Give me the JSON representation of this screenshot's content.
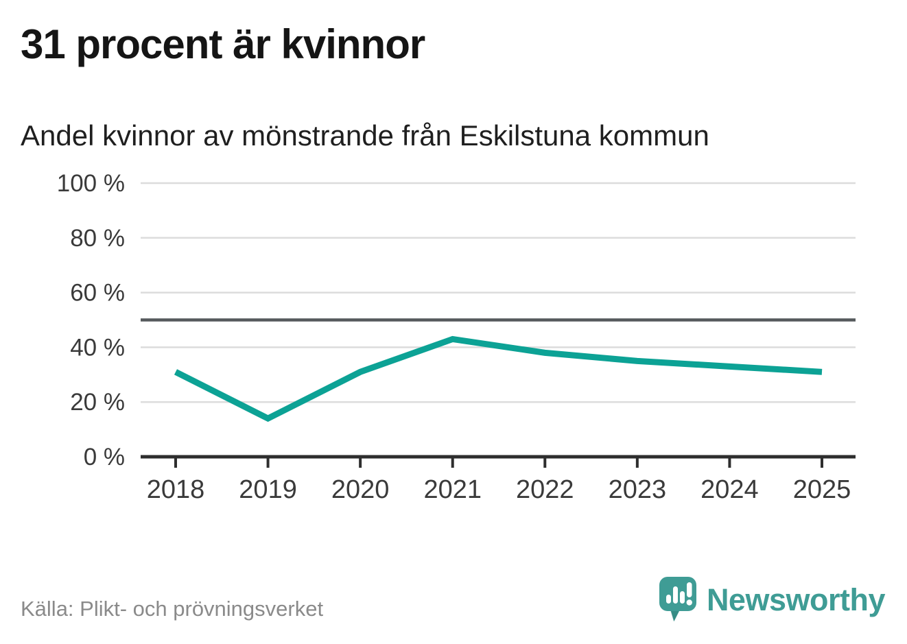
{
  "header": {
    "title": "31 procent är kvinnor",
    "subtitle": "Andel kvinnor av mönstrande från Eskilstuna kommun"
  },
  "chart_data": {
    "type": "line",
    "title": "Andel kvinnor av mönstrande från Eskilstuna kommun",
    "categories": [
      "2018",
      "2019",
      "2020",
      "2021",
      "2022",
      "2023",
      "2024",
      "2025"
    ],
    "series": [
      {
        "name": "Andel kvinnor av mönstrande",
        "values": [
          31,
          14,
          31,
          43,
          38,
          35,
          33,
          31
        ]
      }
    ],
    "xlabel": "",
    "ylabel": "",
    "ylim": [
      0,
      100
    ],
    "yticks": {
      "values": [
        0,
        20,
        40,
        60,
        80,
        100
      ],
      "labels": [
        "0 %",
        "20 %",
        "40 %",
        "60 %",
        "80 %",
        "100 %"
      ]
    },
    "reference_line": {
      "value": 50
    },
    "grid": true,
    "legend": false
  },
  "colors": {
    "line": "#0ca295",
    "grid": "#dcdcdc",
    "reference": "#55595c",
    "axis": "#2e2e2e",
    "tick_label": "#3a3a3a",
    "title": "#151515",
    "subtitle": "#1f1f1f",
    "source": "#8a8a8a",
    "brand": "#3f9c95"
  },
  "footer": {
    "source": "Källa: Plikt- och prövningsverket",
    "brand_name": "Newsworthy"
  }
}
